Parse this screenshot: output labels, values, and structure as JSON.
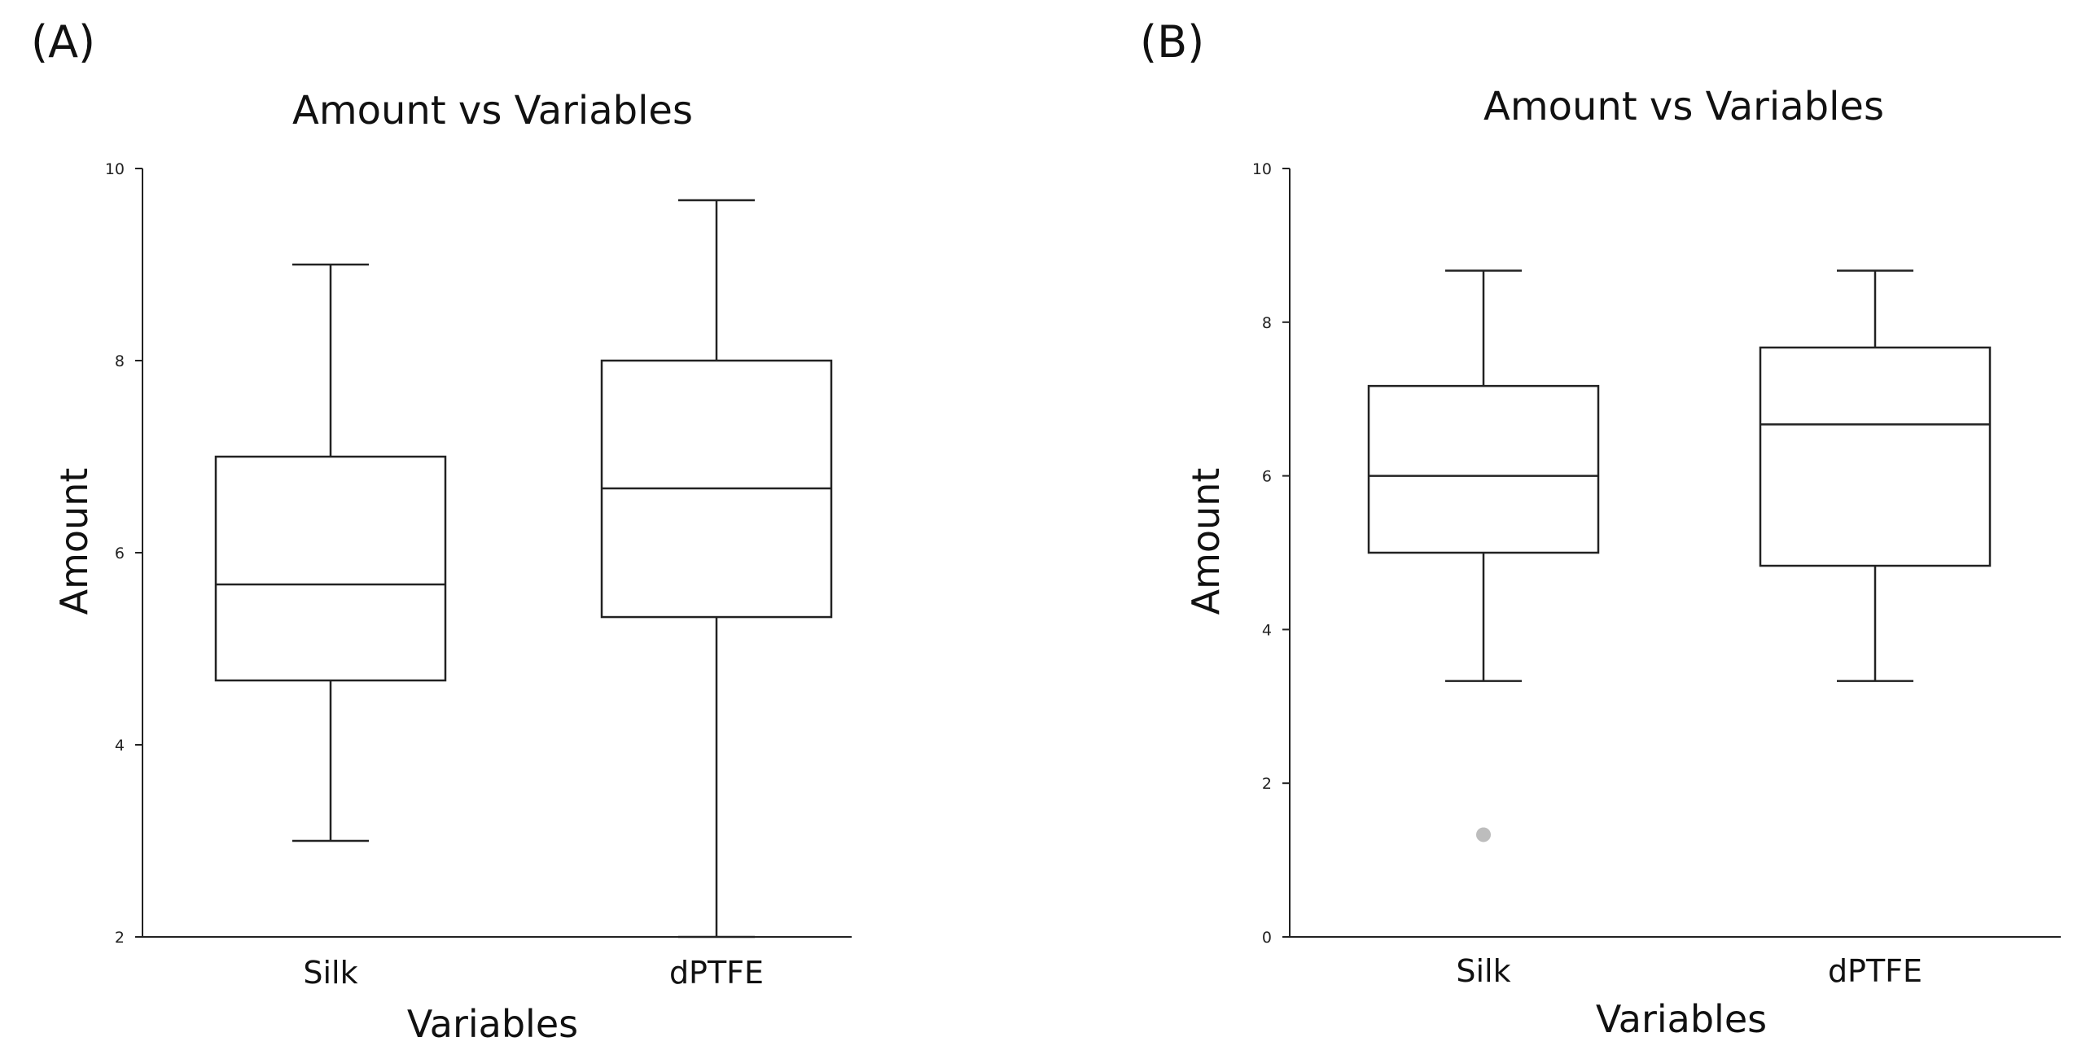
{
  "chart_data": [
    {
      "type": "boxplot",
      "panel_label": "(A)",
      "title": "Amount vs Variables",
      "xlabel": "Variables",
      "ylabel": "Amount",
      "ylim": [
        2,
        10
      ],
      "yticks": [
        2,
        4,
        6,
        8,
        10
      ],
      "categories": [
        "Silk",
        "dPTFE"
      ],
      "boxes": [
        {
          "name": "Silk",
          "whisker_low": 3.0,
          "q1": 4.67,
          "median": 5.67,
          "q3": 7.0,
          "whisker_high": 9.0,
          "outliers": []
        },
        {
          "name": "dPTFE",
          "whisker_low": 2.0,
          "q1": 5.33,
          "median": 6.67,
          "q3": 8.0,
          "whisker_high": 9.67,
          "outliers": []
        }
      ]
    },
    {
      "type": "boxplot",
      "panel_label": "(B)",
      "title": "Amount vs Variables",
      "xlabel": "Variables",
      "ylabel": "Amount",
      "ylim": [
        0,
        10
      ],
      "yticks": [
        0,
        2,
        4,
        6,
        8,
        10
      ],
      "categories": [
        "Silk",
        "dPTFE"
      ],
      "boxes": [
        {
          "name": "Silk",
          "whisker_low": 3.33,
          "q1": 5.0,
          "median": 6.0,
          "q3": 7.17,
          "whisker_high": 8.67,
          "outliers": [
            1.33
          ]
        },
        {
          "name": "dPTFE",
          "whisker_low": 3.33,
          "q1": 4.83,
          "median": 6.67,
          "q3": 7.67,
          "whisker_high": 8.67,
          "outliers": []
        }
      ]
    }
  ]
}
